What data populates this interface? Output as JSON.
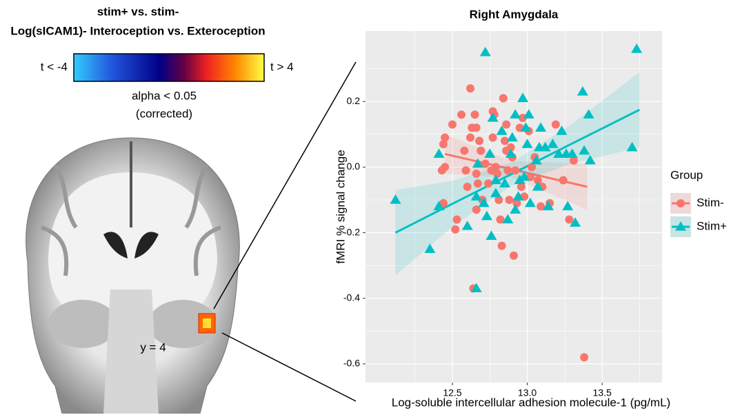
{
  "brain_panel": {
    "title_lines": [
      "stim+ vs. stim-",
      "Log(sICAM1)- Interoception vs. Exteroception"
    ],
    "colorbar_low": "t < -4",
    "colorbar_high": "t > 4",
    "threshold_lines": [
      "alpha < 0.05",
      "(corrected)"
    ],
    "slice_label": "y = 4"
  },
  "chart_data": {
    "type": "scatter",
    "title": "Right Amygdala",
    "x_label": "Log-soluble intercellular adhesion molecule-1 (pg/mL)",
    "y_label": "fMRI % signal change",
    "xlim": [
      11.92,
      13.9
    ],
    "ylim": [
      -0.657,
      0.415
    ],
    "xticks": [
      12.5,
      {
        "value": 13,
        "label": "13.0"
      },
      13.5
    ],
    "yticks": [
      0.2,
      {
        "value": 0,
        "label": "0.0"
      },
      -0.2,
      -0.4,
      -0.6
    ],
    "xminor": [
      12.25,
      12.75,
      13.25,
      13.75
    ],
    "yminor": [
      0.3,
      0.1,
      -0.1,
      -0.3,
      -0.5
    ],
    "grid": true,
    "legend_title": "Group",
    "legend_position": "right",
    "series": [
      {
        "name": "Stim-",
        "color": "#F8766D",
        "marker": "circle",
        "x": [
          12.62,
          12.45,
          12.43,
          12.44,
          12.45,
          12.44,
          12.52,
          12.53,
          12.5,
          12.56,
          12.58,
          12.59,
          12.6,
          12.62,
          12.63,
          12.65,
          12.66,
          12.66,
          12.67,
          12.66,
          12.68,
          12.69,
          12.7,
          12.72,
          12.74,
          12.76,
          12.77,
          12.77,
          12.78,
          12.79,
          12.8,
          12.81,
          12.82,
          12.83,
          12.84,
          12.85,
          12.86,
          12.86,
          12.87,
          12.88,
          12.89,
          12.9,
          12.91,
          12.92,
          12.93,
          12.95,
          12.96,
          12.97,
          12.98,
          13.01,
          13.02,
          13.03,
          13.05,
          13.07,
          13.09,
          13.1,
          13.15,
          13.19,
          13.24,
          13.28,
          13.31,
          13.38,
          12.64
        ],
        "values": [
          0.24,
          0,
          -0.01,
          0.07,
          0.09,
          -0.11,
          -0.19,
          -0.16,
          0.13,
          0.16,
          0.05,
          -0.01,
          -0.06,
          0.09,
          0.12,
          0.16,
          0.12,
          -0.02,
          -0.05,
          -0.13,
          0.08,
          0.05,
          -0.1,
          0.01,
          -0.05,
          -0.01,
          0.09,
          0.17,
          0.16,
          0,
          -0.02,
          -0.1,
          -0.16,
          -0.24,
          0.21,
          0.08,
          0.05,
          0.13,
          -0.01,
          -0.1,
          0.06,
          0.03,
          -0.27,
          -0.01,
          -0.11,
          0.12,
          -0.06,
          0.15,
          -0.09,
          0.11,
          -0.03,
          0,
          0.03,
          -0.04,
          -0.12,
          -0.06,
          -0.11,
          0.13,
          -0.04,
          -0.16,
          0.02,
          -0.58,
          -0.37
        ],
        "fit": {
          "x": [
            12.45,
            12.9,
            13.4
          ],
          "y": [
            0.04,
            -0.007,
            -0.06
          ],
          "lower": [
            -0.02,
            -0.032,
            -0.13
          ],
          "upper": [
            0.1,
            0.018,
            0.01
          ]
        }
      },
      {
        "name": "Stim+",
        "color": "#00BFC4",
        "marker": "triangle",
        "x": [
          12.12,
          12.35,
          12.41,
          12.41,
          12.6,
          12.66,
          12.72,
          12.67,
          12.66,
          12.71,
          12.75,
          12.77,
          12.79,
          12.79,
          12.73,
          12.76,
          12.83,
          12.85,
          12.87,
          12.89,
          12.9,
          12.92,
          12.92,
          12.94,
          12.95,
          12.97,
          12.98,
          12.99,
          13.01,
          13,
          13.02,
          13.06,
          13.07,
          13.08,
          13.09,
          13.12,
          13.14,
          13.17,
          13.21,
          13.23,
          13.26,
          13.27,
          13.3,
          13.32,
          13.37,
          13.38,
          13.41,
          13.42,
          13.7,
          13.73
        ],
        "values": [
          -0.1,
          -0.25,
          0.04,
          -0.12,
          -0.18,
          -0.37,
          0.35,
          0.01,
          -0.09,
          -0.11,
          0.04,
          0.15,
          -0.04,
          -0.08,
          -0.15,
          -0.21,
          0.11,
          -0.05,
          -0.16,
          0.04,
          0.09,
          0.16,
          -0.13,
          -0.09,
          -0.04,
          0.21,
          -0.03,
          0.12,
          0.16,
          0.07,
          -0.11,
          0.02,
          -0.06,
          0.06,
          0.12,
          0.06,
          -0.12,
          0.07,
          0.04,
          0.11,
          0.04,
          -0.12,
          0.04,
          -0.17,
          0.23,
          0.05,
          0.16,
          0.02,
          0.06,
          0.36
        ],
        "fit": {
          "x": [
            12.12,
            12.5,
            12.9,
            13.3,
            13.75
          ],
          "y": [
            -0.2,
            -0.112,
            -0.02,
            0.072,
            0.175
          ],
          "lower": [
            -0.33,
            -0.182,
            -0.055,
            0.012,
            0.06
          ],
          "upper": [
            -0.07,
            -0.042,
            0.015,
            0.132,
            0.29
          ]
        }
      }
    ]
  }
}
